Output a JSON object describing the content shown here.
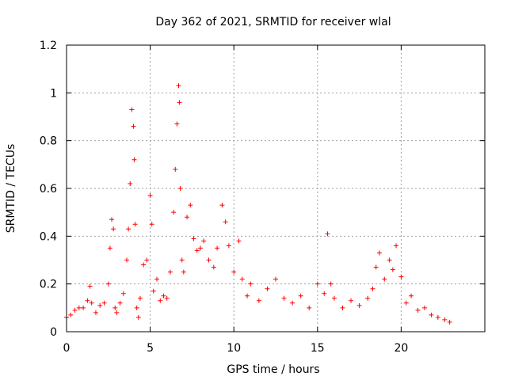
{
  "chart_data": {
    "type": "scatter",
    "title": "Day 362 of 2021, SRMTID for receiver wlal",
    "xlabel": "GPS time / hours",
    "ylabel": "SRMTID / TECUs",
    "xlim": [
      0,
      25
    ],
    "ylim": [
      0,
      1.2
    ],
    "xticks": [
      0,
      5,
      10,
      15,
      20
    ],
    "xtick_labels": [
      "0",
      "5",
      "10",
      "15",
      "20"
    ],
    "yticks": [
      0,
      0.2,
      0.4,
      0.6,
      0.8,
      1.0,
      1.2
    ],
    "ytick_labels": [
      "0",
      "0.2",
      "0.4",
      "0.6",
      "0.8",
      "1",
      "1.2"
    ],
    "grid": true,
    "marker": "plus",
    "series_color": "#ff0000",
    "series": [
      {
        "name": "SRMTID",
        "x": [
          0.0,
          0.25,
          0.5,
          0.75,
          1.0,
          1.25,
          1.4,
          1.5,
          1.75,
          2.0,
          2.25,
          2.5,
          2.6,
          2.7,
          2.8,
          2.9,
          3.0,
          3.2,
          3.4,
          3.6,
          3.7,
          3.8,
          3.9,
          4.0,
          4.05,
          4.1,
          4.2,
          4.3,
          4.4,
          4.6,
          4.8,
          5.0,
          5.1,
          5.2,
          5.4,
          5.6,
          5.8,
          6.0,
          6.2,
          6.4,
          6.5,
          6.6,
          6.7,
          6.75,
          6.8,
          6.9,
          7.0,
          7.2,
          7.4,
          7.6,
          7.8,
          8.0,
          8.2,
          8.5,
          8.8,
          9.0,
          9.3,
          9.5,
          9.7,
          10.0,
          10.3,
          10.5,
          10.8,
          11.0,
          11.5,
          12.0,
          12.5,
          13.0,
          13.5,
          14.0,
          14.5,
          15.0,
          15.4,
          15.6,
          15.8,
          16.0,
          16.5,
          17.0,
          17.5,
          18.0,
          18.3,
          18.5,
          18.7,
          19.0,
          19.3,
          19.5,
          19.7,
          20.0,
          20.3,
          20.6,
          21.0,
          21.4,
          21.8,
          22.2,
          22.6,
          22.9
        ],
        "y": [
          0.06,
          0.07,
          0.09,
          0.1,
          0.1,
          0.13,
          0.19,
          0.12,
          0.08,
          0.11,
          0.12,
          0.2,
          0.35,
          0.47,
          0.43,
          0.1,
          0.08,
          0.12,
          0.16,
          0.3,
          0.43,
          0.62,
          0.93,
          0.86,
          0.72,
          0.45,
          0.1,
          0.06,
          0.14,
          0.28,
          0.3,
          0.57,
          0.45,
          0.17,
          0.22,
          0.13,
          0.15,
          0.14,
          0.25,
          0.5,
          0.68,
          0.87,
          1.03,
          0.96,
          0.6,
          0.3,
          0.25,
          0.48,
          0.53,
          0.39,
          0.34,
          0.35,
          0.38,
          0.3,
          0.27,
          0.35,
          0.53,
          0.46,
          0.36,
          0.25,
          0.38,
          0.22,
          0.15,
          0.2,
          0.13,
          0.18,
          0.22,
          0.14,
          0.12,
          0.15,
          0.1,
          0.2,
          0.16,
          0.41,
          0.2,
          0.14,
          0.1,
          0.13,
          0.11,
          0.14,
          0.18,
          0.27,
          0.33,
          0.22,
          0.3,
          0.26,
          0.36,
          0.23,
          0.12,
          0.15,
          0.09,
          0.1,
          0.07,
          0.06,
          0.05,
          0.04
        ]
      }
    ]
  }
}
